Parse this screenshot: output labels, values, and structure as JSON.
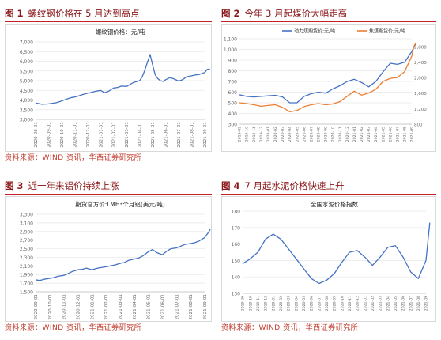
{
  "figures": [
    {
      "label": "图 1",
      "title": "螺纹钢价格在 5 月达到高点",
      "source": "资料来源：WIND 资讯，华西证券研究所"
    },
    {
      "label": "图 2",
      "title": "今年 3 月起煤价大幅走高",
      "source": ""
    },
    {
      "label": "图 3",
      "title": "近一年来铝价持续上涨",
      "source": "资料来源：WIND 资讯，华西证券研究所"
    },
    {
      "label": "图 4",
      "title": "7 月起水泥价格快速上升",
      "source": "资料来源：WIND 资讯，华西证券研究所"
    }
  ],
  "colors": {
    "accent": "#c52028",
    "line": "#4472c4",
    "line2": "#ed7d31"
  },
  "chart_data": [
    {
      "type": "line",
      "title": "螺纹钢价格：元/吨",
      "ylim": [
        3000,
        7000
      ],
      "yticks": [
        "3,000",
        "3,500",
        "4,000",
        "4,500",
        "5,000",
        "5,500",
        "6,000",
        "6,500",
        "7,000"
      ],
      "xticks": [
        "2020-08-01",
        "2020-09-01",
        "2020-10-01",
        "2020-11-01",
        "2020-12-01",
        "2021-01-01",
        "2021-02-01",
        "2021-03-01",
        "2021-04-01",
        "2021-05-01",
        "2021-06-01",
        "2021-07-01",
        "2021-08-01",
        "2021-09-01"
      ],
      "grid": true,
      "series": [
        {
          "color": "#4472c4",
          "x": [
            0,
            0.2,
            0.5,
            0.8,
            1.0,
            1.3,
            1.6,
            2.0,
            2.4,
            2.8,
            3.0,
            3.3,
            3.6,
            4.0,
            4.3,
            4.6,
            5.0,
            5.3,
            5.6,
            6.0,
            6.3,
            6.6,
            7.0,
            7.2,
            7.5,
            7.8,
            8.0,
            8.2,
            8.4,
            8.6,
            8.8,
            9.0,
            9.2,
            9.4,
            9.6,
            9.8,
            10.0,
            10.3,
            10.6,
            11.0,
            11.3,
            11.6,
            12.0,
            12.3,
            12.6,
            13.0,
            13.2,
            13.4
          ],
          "values": [
            3850,
            3820,
            3780,
            3790,
            3800,
            3830,
            3860,
            3950,
            4050,
            4130,
            4150,
            4210,
            4280,
            4350,
            4400,
            4450,
            4500,
            4380,
            4450,
            4620,
            4650,
            4720,
            4700,
            4780,
            4900,
            4960,
            5000,
            5200,
            5550,
            5950,
            6350,
            5800,
            5300,
            5100,
            5000,
            4960,
            5050,
            5150,
            5100,
            4980,
            5050,
            5200,
            5250,
            5300,
            5320,
            5420,
            5580,
            5600
          ]
        }
      ]
    },
    {
      "type": "line",
      "ylim": [
        300,
        1100
      ],
      "yticks": [
        "300",
        "400",
        "500",
        "600",
        "700",
        "800",
        "900",
        "1,000",
        "1,100"
      ],
      "y2lim": [
        800,
        3000
      ],
      "y2ticks": [
        "800",
        "1,200",
        "1,600",
        "2,000",
        "2,400",
        "2,800"
      ],
      "xticks": [
        "2019-09",
        "2019-10",
        "2019-11",
        "2019-12",
        "2020-01",
        "2020-02",
        "2020-03",
        "2020-04",
        "2020-05",
        "2020-06",
        "2020-07",
        "2020-08",
        "2020-09",
        "2020-10",
        "2020-11",
        "2020-12",
        "2021-01",
        "2021-02",
        "2021-03",
        "2021-04",
        "2021-05",
        "2021-06",
        "2021-07",
        "2021-08",
        "2021-09"
      ],
      "grid": true,
      "legend_position": "top",
      "series": [
        {
          "name": "动力煤期货价:元/吨",
          "axis": "left",
          "color": "#4472c4",
          "x": [
            0,
            1,
            2,
            3,
            4,
            5,
            6,
            7,
            8,
            9,
            10,
            11,
            12,
            13,
            14,
            15,
            16,
            17,
            18,
            19,
            20,
            21,
            22,
            23,
            24,
            24.3,
            24.6
          ],
          "values": [
            575,
            560,
            555,
            560,
            565,
            570,
            555,
            500,
            500,
            560,
            585,
            600,
            590,
            630,
            660,
            700,
            720,
            690,
            650,
            700,
            790,
            870,
            860,
            880,
            980,
            1020,
            1060
          ]
        },
        {
          "name": "焦煤期货价:元/吨",
          "axis": "right",
          "color": "#ed7d31",
          "x": [
            0,
            1,
            2,
            3,
            4,
            5,
            6,
            7,
            8,
            9,
            10,
            11,
            12,
            13,
            14,
            15,
            16,
            17,
            18,
            19,
            20,
            21,
            22,
            23,
            24,
            24.3,
            24.6
          ],
          "values": [
            1350,
            1330,
            1300,
            1260,
            1280,
            1300,
            1230,
            1120,
            1150,
            1250,
            1300,
            1330,
            1300,
            1320,
            1380,
            1520,
            1650,
            1550,
            1600,
            1700,
            1900,
            1980,
            2000,
            2150,
            2550,
            2800,
            2900
          ]
        }
      ]
    },
    {
      "type": "line",
      "title": "期货官方价:LME3个月铝(美元/吨)",
      "ylim": [
        1500,
        3300
      ],
      "yticks": [
        "1,500",
        "1,700",
        "1,900",
        "2,100",
        "2,300",
        "2,500",
        "2,700",
        "2,900",
        "3,100",
        "3,300"
      ],
      "xticks": [
        "2020-09-01",
        "2020-10-01",
        "2020-11-01",
        "2020-12-01",
        "2021-01-01",
        "2021-02-01",
        "2021-03-01",
        "2021-04-01",
        "2021-05-01",
        "2021-06-01",
        "2021-07-01",
        "2021-08-01",
        "2021-09-01"
      ],
      "grid": true,
      "series": [
        {
          "color": "#4472c4",
          "x": [
            0,
            0.3,
            0.6,
            1.0,
            1.3,
            1.6,
            2.0,
            2.3,
            2.6,
            3.0,
            3.3,
            3.6,
            4.0,
            4.3,
            4.6,
            5.0,
            5.3,
            5.6,
            6.0,
            6.3,
            6.6,
            7.0,
            7.3,
            7.6,
            8.0,
            8.3,
            8.6,
            9.0,
            9.3,
            9.6,
            10.0,
            10.3,
            10.6,
            11.0,
            11.3,
            11.6,
            12.0,
            12.2,
            12.4
          ],
          "values": [
            1780,
            1760,
            1790,
            1810,
            1830,
            1860,
            1880,
            1920,
            1970,
            2010,
            2020,
            2050,
            2010,
            2040,
            2060,
            2080,
            2100,
            2120,
            2160,
            2180,
            2230,
            2260,
            2280,
            2330,
            2430,
            2480,
            2410,
            2360,
            2440,
            2500,
            2520,
            2560,
            2600,
            2620,
            2640,
            2680,
            2760,
            2850,
            2950
          ]
        }
      ]
    },
    {
      "type": "line",
      "title": "全国水泥价格指数",
      "ylim": [
        130,
        180
      ],
      "yticks": [
        "130",
        "140",
        "150",
        "160",
        "170",
        "180"
      ],
      "xticks": [
        "2019-09",
        "2019-10",
        "2019-11",
        "2019-12",
        "2020-01",
        "2020-02",
        "2020-03",
        "2020-04",
        "2020-05",
        "2020-06",
        "2020-07",
        "2020-08",
        "2020-09",
        "2020-10",
        "2020-11",
        "2020-12",
        "2021-01",
        "2021-02",
        "2021-03",
        "2021-04",
        "2021-05",
        "2021-06",
        "2021-07",
        "2021-08",
        "2021-09"
      ],
      "grid": true,
      "series": [
        {
          "color": "#4472c4",
          "x": [
            0,
            1,
            2,
            3,
            4,
            5,
            6,
            7,
            8,
            9,
            10,
            11,
            12,
            13,
            14,
            15,
            16,
            17,
            18,
            19,
            20,
            21,
            22,
            23,
            24,
            24.5
          ],
          "values": [
            148,
            151,
            155,
            163,
            166,
            163,
            157,
            151,
            145,
            139,
            136,
            138,
            142,
            149,
            155,
            156,
            152,
            147,
            152,
            158,
            159,
            152,
            143,
            139,
            150,
            173
          ]
        }
      ]
    }
  ]
}
